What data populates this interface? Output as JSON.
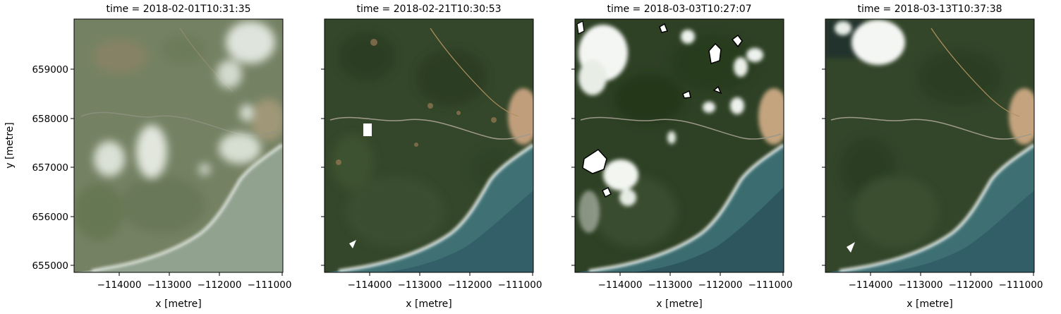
{
  "figure": {
    "ylabel": "y [metre]",
    "xlabel": "x [metre]",
    "x_ticks": [
      "−114000",
      "−113000",
      "−112000",
      "−111000"
    ],
    "y_ticks": [
      "659000",
      "658000",
      "657000",
      "656000",
      "655000"
    ],
    "panels": [
      {
        "title": "time = 2018-02-01T10:31:35"
      },
      {
        "title": "time = 2018-02-21T10:30:53"
      },
      {
        "title": "time = 2018-03-03T10:27:07"
      },
      {
        "title": "time = 2018-03-13T10:37:38"
      }
    ]
  },
  "colors": {
    "land_hazy": "#6d7a5a",
    "land": "#35482a",
    "land_dark": "#24361e",
    "sea_hazy": "#8fa190",
    "sea": "#3e6f72",
    "sea_dark": "#2d5560",
    "surf": "#f2f5f2",
    "cloud": "#eef2ee",
    "cloud_mask": "#ffffff",
    "urban": "#c3a27f",
    "road": "#9a9688",
    "nodata": "#000000"
  }
}
